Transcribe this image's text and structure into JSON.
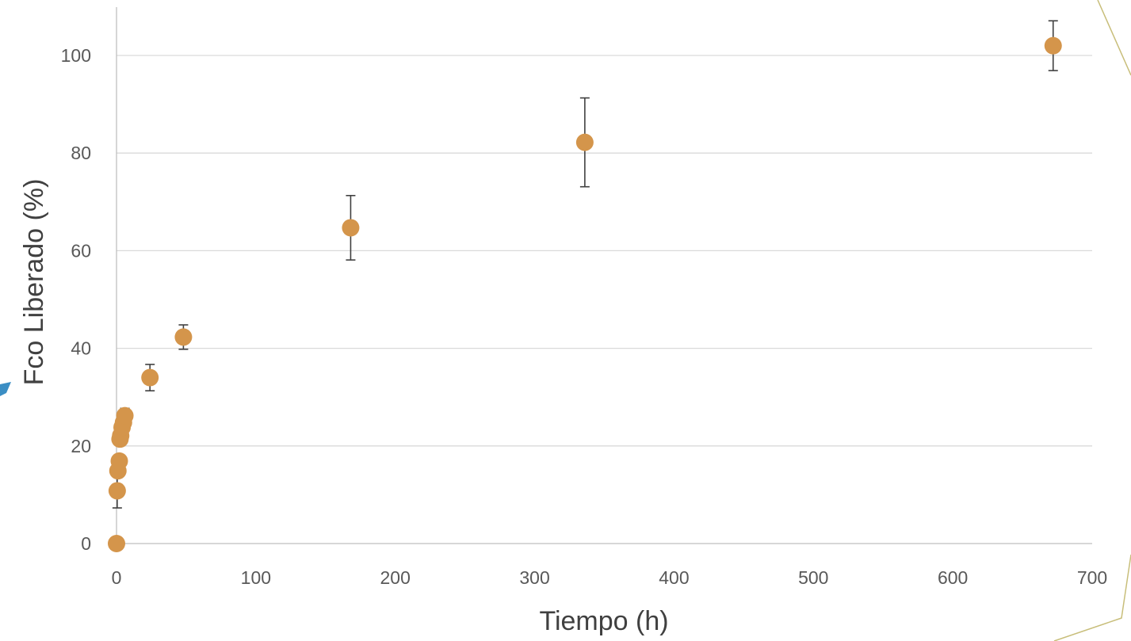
{
  "chart_data": {
    "type": "scatter",
    "title": "",
    "xlabel": "Tiempo (h)",
    "ylabel": "Fco Liberado (%)",
    "xlim": [
      0,
      700
    ],
    "ylim": [
      0,
      100
    ],
    "x_ticks": [
      0,
      100,
      200,
      300,
      400,
      500,
      600,
      700
    ],
    "y_ticks": [
      0,
      20,
      40,
      60,
      80,
      100
    ],
    "grid": "horizontal",
    "legend": "none",
    "marker_color": "#D4954B",
    "errorbar_color": "#404040",
    "points": [
      {
        "x": 0,
        "y": 0,
        "err": 0
      },
      {
        "x": 0.5,
        "y": 10.8,
        "err": 3.5
      },
      {
        "x": 1,
        "y": 14.9,
        "err": 1.2
      },
      {
        "x": 2,
        "y": 16.9,
        "err": 1.2
      },
      {
        "x": 2.5,
        "y": 21.4,
        "err": 1.3
      },
      {
        "x": 3,
        "y": 22.1,
        "err": 1.3
      },
      {
        "x": 4,
        "y": 23.8,
        "err": 1.4
      },
      {
        "x": 5,
        "y": 24.8,
        "err": 1.4
      },
      {
        "x": 6,
        "y": 26.2,
        "err": 1.5
      },
      {
        "x": 24,
        "y": 34.0,
        "err": 2.7
      },
      {
        "x": 48,
        "y": 42.3,
        "err": 2.5
      },
      {
        "x": 168,
        "y": 64.7,
        "err": 6.6
      },
      {
        "x": 336,
        "y": 82.2,
        "err": 9.1
      },
      {
        "x": 672,
        "y": 102.0,
        "err": 5.1
      }
    ]
  }
}
